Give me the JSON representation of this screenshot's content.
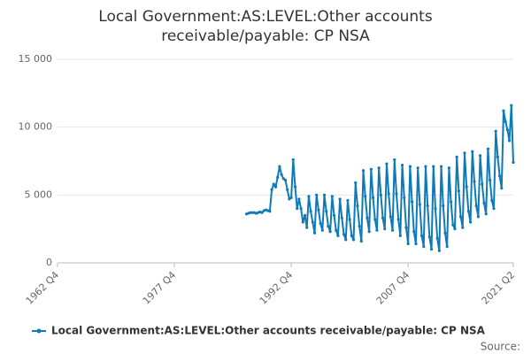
{
  "chart_data": {
    "type": "line",
    "title": "Local Government:AS:LEVEL:Other accounts receivable/payable: CP NSA",
    "source": "Source:",
    "x": [
      "1987 Q1",
      "1987 Q2",
      "1987 Q3",
      "1987 Q4",
      "1988 Q1",
      "1988 Q2",
      "1988 Q3",
      "1988 Q4",
      "1989 Q1",
      "1989 Q2",
      "1989 Q3",
      "1989 Q4",
      "1990 Q1",
      "1990 Q2",
      "1990 Q3",
      "1990 Q4",
      "1991 Q1",
      "1991 Q2",
      "1991 Q3",
      "1991 Q4",
      "1992 Q1",
      "1992 Q2",
      "1992 Q3",
      "1992 Q4",
      "1993 Q1",
      "1993 Q2",
      "1993 Q3",
      "1993 Q4",
      "1994 Q1",
      "1994 Q2",
      "1994 Q3",
      "1994 Q4",
      "1995 Q1",
      "1995 Q2",
      "1995 Q3",
      "1995 Q4",
      "1996 Q1",
      "1996 Q2",
      "1996 Q3",
      "1996 Q4",
      "1997 Q1",
      "1997 Q2",
      "1997 Q3",
      "1997 Q4",
      "1998 Q1",
      "1998 Q2",
      "1998 Q3",
      "1998 Q4",
      "1999 Q1",
      "1999 Q2",
      "1999 Q3",
      "1999 Q4",
      "2000 Q1",
      "2000 Q2",
      "2000 Q3",
      "2000 Q4",
      "2001 Q1",
      "2001 Q2",
      "2001 Q3",
      "2001 Q4",
      "2002 Q1",
      "2002 Q2",
      "2002 Q3",
      "2002 Q4",
      "2003 Q1",
      "2003 Q2",
      "2003 Q3",
      "2003 Q4",
      "2004 Q1",
      "2004 Q2",
      "2004 Q3",
      "2004 Q4",
      "2005 Q1",
      "2005 Q2",
      "2005 Q3",
      "2005 Q4",
      "2006 Q1",
      "2006 Q2",
      "2006 Q3",
      "2006 Q4",
      "2007 Q1",
      "2007 Q2",
      "2007 Q3",
      "2007 Q4",
      "2008 Q1",
      "2008 Q2",
      "2008 Q3",
      "2008 Q4",
      "2009 Q1",
      "2009 Q2",
      "2009 Q3",
      "2009 Q4",
      "2010 Q1",
      "2010 Q2",
      "2010 Q3",
      "2010 Q4",
      "2011 Q1",
      "2011 Q2",
      "2011 Q3",
      "2011 Q4",
      "2012 Q1",
      "2012 Q2",
      "2012 Q3",
      "2012 Q4",
      "2013 Q1",
      "2013 Q2",
      "2013 Q3",
      "2013 Q4",
      "2014 Q1",
      "2014 Q2",
      "2014 Q3",
      "2014 Q4",
      "2015 Q1",
      "2015 Q2",
      "2015 Q3",
      "2015 Q4",
      "2016 Q1",
      "2016 Q2",
      "2016 Q3",
      "2016 Q4",
      "2017 Q1",
      "2017 Q2",
      "2017 Q3",
      "2017 Q4",
      "2018 Q1",
      "2018 Q2",
      "2018 Q3",
      "2018 Q4",
      "2019 Q1",
      "2019 Q2",
      "2019 Q3",
      "2019 Q4",
      "2020 Q1",
      "2020 Q2",
      "2020 Q3",
      "2020 Q4",
      "2021 Q1",
      "2021 Q2"
    ],
    "series": [
      {
        "name": "Local Government:AS:LEVEL:Other accounts receivable/payable: CP NSA",
        "color": "#0f7ab8",
        "values": [
          3600,
          3650,
          3700,
          3700,
          3700,
          3650,
          3700,
          3750,
          3700,
          3850,
          3900,
          3850,
          3800,
          5400,
          5800,
          5600,
          6300,
          7100,
          6500,
          6200,
          6100,
          5400,
          4700,
          4800,
          7600,
          5600,
          4000,
          4700,
          4000,
          3000,
          3500,
          2600,
          4900,
          3800,
          3000,
          2200,
          5000,
          3900,
          2900,
          2400,
          5000,
          3800,
          2700,
          2300,
          4900,
          3500,
          2400,
          2000,
          4700,
          3300,
          2100,
          1700,
          4600,
          3200,
          2000,
          1700,
          5900,
          4200,
          2700,
          1600,
          6800,
          4900,
          3300,
          2300,
          6900,
          4800,
          3200,
          2400,
          7000,
          5000,
          3300,
          2500,
          7300,
          5100,
          3400,
          2400,
          7600,
          5100,
          3200,
          2000,
          7200,
          4800,
          2600,
          1400,
          7100,
          4500,
          2300,
          1400,
          7000,
          4300,
          2000,
          1200,
          7100,
          4200,
          1900,
          1000,
          7100,
          4000,
          1800,
          900,
          7100,
          4200,
          2200,
          1200,
          7000,
          4500,
          2800,
          2500,
          7800,
          5300,
          3400,
          2600,
          8100,
          5600,
          3800,
          3000,
          8200,
          6000,
          4200,
          3400,
          7900,
          5800,
          4400,
          3600,
          8400,
          6100,
          4600,
          4000,
          9700,
          7800,
          6400,
          5500,
          11200,
          10400,
          9800,
          9000,
          11600,
          7400
        ]
      }
    ],
    "xlim": [
      "1962 Q4",
      "2021 Q2"
    ],
    "xticks": [
      "1962 Q4",
      "1977 Q4",
      "1992 Q4",
      "2007 Q4",
      "2021 Q2"
    ],
    "ylim": [
      0,
      15000
    ],
    "yticks": [
      0,
      {
        "value": 5000,
        "label": "5 000"
      },
      {
        "value": 10000,
        "label": "10 000"
      },
      {
        "value": 15000,
        "label": "15 000"
      }
    ],
    "grid": true
  }
}
